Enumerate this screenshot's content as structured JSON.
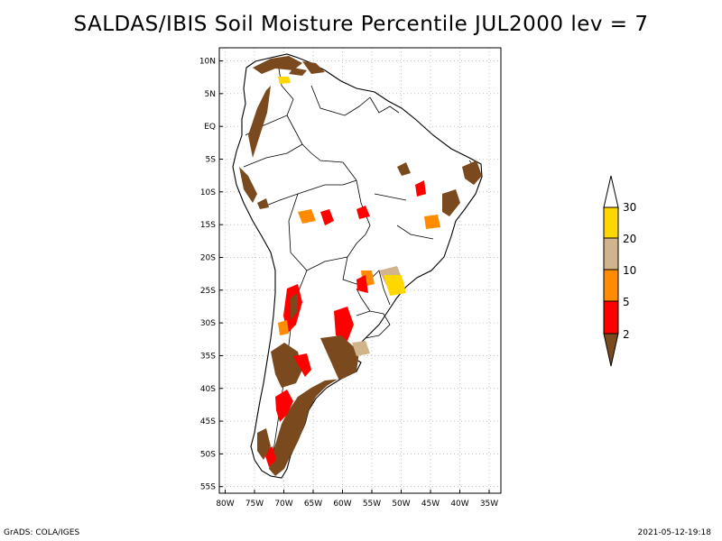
{
  "title": "SALDAS/IBIS Soil Moisture Percentile JUL2000 lev = 7",
  "footer": {
    "left": "GrADS: COLA/IGES",
    "right": "2021-05-12-19:18"
  },
  "map": {
    "lat_ticks": [
      "10N",
      "5N",
      "EQ",
      "5S",
      "10S",
      "15S",
      "20S",
      "25S",
      "30S",
      "35S",
      "40S",
      "45S",
      "50S",
      "55S"
    ],
    "lon_ticks": [
      "80W",
      "75W",
      "70W",
      "65W",
      "60W",
      "55W",
      "50W",
      "45W",
      "40W",
      "35W"
    ],
    "lat_range": [
      12,
      -56
    ],
    "lon_range": [
      -81,
      -33
    ]
  },
  "colorbar": {
    "labels": [
      "2",
      "5",
      "10",
      "20",
      "30"
    ],
    "colors": {
      "below_2": "#7a4a1e",
      "2_5": "#ff0000",
      "5_10": "#ff8c00",
      "10_20": "#d2b48c",
      "20_30": "#ffd700",
      "above_30": "#ffffff"
    }
  }
}
